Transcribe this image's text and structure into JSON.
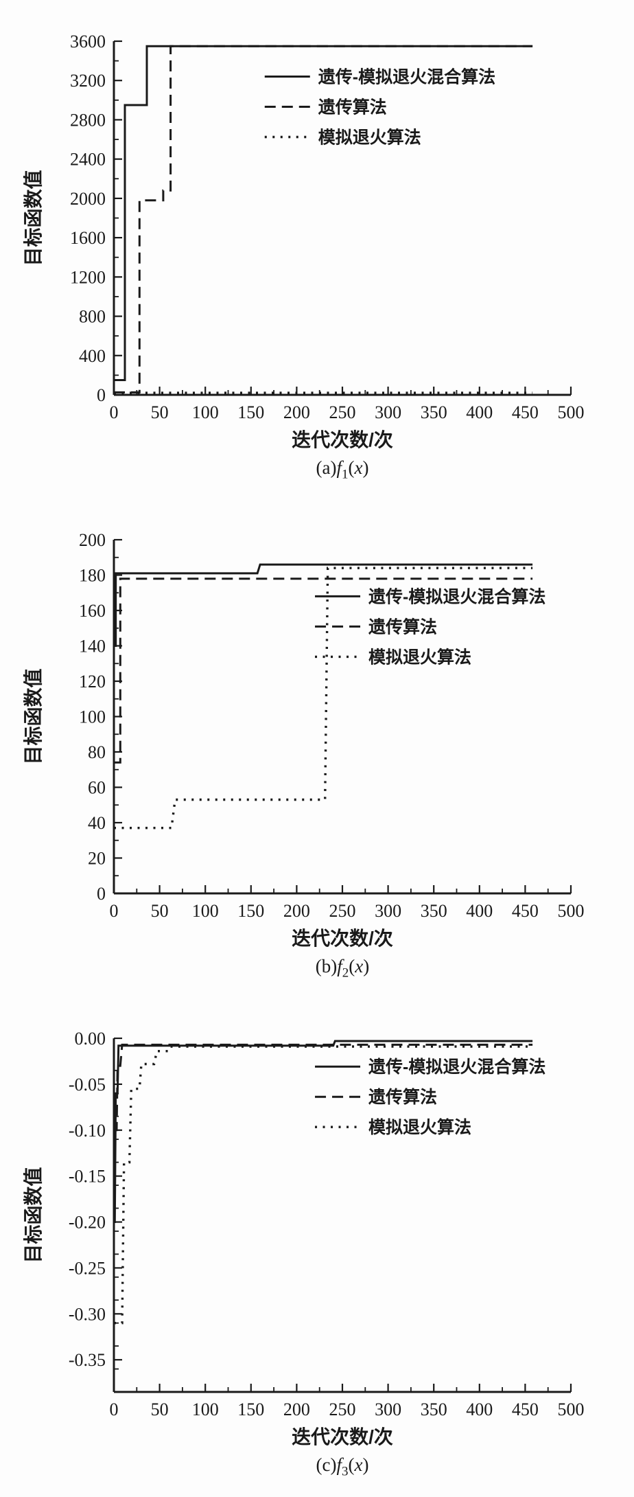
{
  "page": {
    "bg": "#fdfdfd",
    "ink": "#1a1a1a"
  },
  "axis_labels": {
    "x": "迭代次数/次",
    "y": "目标函数值"
  },
  "legend_labels": [
    "遗传-模拟退火混合算法",
    "遗传算法",
    "模拟退火算法"
  ],
  "chart_data": [
    {
      "type": "line",
      "caption": {
        "index": "(a)",
        "fname": "f",
        "sub": "1",
        "open": "(",
        "var": "x",
        "close": ")"
      },
      "xlabel": "迭代次数/次",
      "ylabel": "目标函数值",
      "xlim": [
        0,
        500
      ],
      "ylim": [
        0,
        3600
      ],
      "xticks": [
        0,
        50,
        100,
        150,
        200,
        250,
        300,
        350,
        400,
        450,
        500
      ],
      "yticks": [
        0,
        400,
        800,
        1200,
        1600,
        2000,
        2400,
        2800,
        3200,
        3600
      ],
      "xminor": 25,
      "yminor": 200,
      "ydecimals": 0,
      "grid": false,
      "legend_pos": {
        "fx": 0.33,
        "fy": 0.1
      },
      "series": [
        {
          "name": "遗传-模拟退火混合算法",
          "style": "solid",
          "points": [
            [
              0,
              150
            ],
            [
              12,
              150
            ],
            [
              12,
              2950
            ],
            [
              36,
              2950
            ],
            [
              36,
              3550
            ],
            [
              458,
              3550
            ]
          ]
        },
        {
          "name": "遗传算法",
          "style": "dashed",
          "points": [
            [
              0,
              25
            ],
            [
              28,
              25
            ],
            [
              28,
              1980
            ],
            [
              54,
              1980
            ],
            [
              54,
              2080
            ],
            [
              62,
              2080
            ],
            [
              62,
              3550
            ],
            [
              458,
              3550
            ]
          ]
        },
        {
          "name": "模拟退火算法",
          "style": "dotted",
          "points": [
            [
              0,
              20
            ],
            [
              458,
              20
            ]
          ]
        }
      ]
    },
    {
      "type": "line",
      "caption": {
        "index": "(b)",
        "fname": "f",
        "sub": "2",
        "open": "(",
        "var": "x",
        "close": ")"
      },
      "xlabel": "迭代次数/次",
      "ylabel": "目标函数值",
      "xlim": [
        0,
        500
      ],
      "ylim": [
        0,
        200
      ],
      "xticks": [
        0,
        50,
        100,
        150,
        200,
        250,
        300,
        350,
        400,
        450,
        500
      ],
      "yticks": [
        0,
        20,
        40,
        60,
        80,
        100,
        120,
        140,
        160,
        180,
        200
      ],
      "xminor": 25,
      "yminor": 10,
      "ydecimals": 0,
      "grid": false,
      "legend_pos": {
        "fx": 0.44,
        "fy": 0.16
      },
      "series": [
        {
          "name": "遗传-模拟退火混合算法",
          "style": "solid",
          "points": [
            [
              0,
              140
            ],
            [
              2,
              140
            ],
            [
              2,
              181
            ],
            [
              157,
              181
            ],
            [
              160,
              186
            ],
            [
              458,
              186
            ]
          ]
        },
        {
          "name": "遗传算法",
          "style": "dashed",
          "points": [
            [
              0,
              74
            ],
            [
              7,
              74
            ],
            [
              7,
              178
            ],
            [
              458,
              178
            ]
          ]
        },
        {
          "name": "模拟退火算法",
          "style": "dotted",
          "points": [
            [
              0,
              37
            ],
            [
              63,
              37
            ],
            [
              67,
              53
            ],
            [
              231,
              53
            ],
            [
              234,
              184
            ],
            [
              458,
              184
            ]
          ]
        }
      ]
    },
    {
      "type": "line",
      "caption": {
        "index": "(c)",
        "fname": "f",
        "sub": "3",
        "open": "(",
        "var": "x",
        "close": ")"
      },
      "xlabel": "迭代次数/次",
      "ylabel": "目标函数值",
      "xlim": [
        0,
        500
      ],
      "ylim": [
        -0.385,
        0
      ],
      "xticks": [
        0,
        50,
        100,
        150,
        200,
        250,
        300,
        350,
        400,
        450,
        500
      ],
      "yticks": [
        0,
        -0.05,
        -0.1,
        -0.15,
        -0.2,
        -0.25,
        -0.3,
        -0.35
      ],
      "xminor": 25,
      "yminor": 0.025,
      "ydecimals": 2,
      "grid": false,
      "legend_pos": {
        "fx": 0.44,
        "fy": 0.08
      },
      "series": [
        {
          "name": "遗传-模拟退火混合算法",
          "style": "solid",
          "points": [
            [
              0,
              -0.2
            ],
            [
              1,
              -0.2
            ],
            [
              2,
              -0.06
            ],
            [
              4,
              -0.06
            ],
            [
              5,
              -0.008
            ],
            [
              240,
              -0.008
            ],
            [
              242,
              -0.003
            ],
            [
              458,
              -0.003
            ]
          ]
        },
        {
          "name": "遗传算法",
          "style": "dashed",
          "points": [
            [
              0,
              -0.1
            ],
            [
              3,
              -0.1
            ],
            [
              4,
              -0.03
            ],
            [
              7,
              -0.03
            ],
            [
              9,
              -0.007
            ],
            [
              458,
              -0.007
            ]
          ]
        },
        {
          "name": "模拟退火算法",
          "style": "dotted",
          "points": [
            [
              0,
              -0.31
            ],
            [
              9,
              -0.31
            ],
            [
              11,
              -0.135
            ],
            [
              17,
              -0.135
            ],
            [
              19,
              -0.055
            ],
            [
              28,
              -0.055
            ],
            [
              30,
              -0.028
            ],
            [
              44,
              -0.028
            ],
            [
              47,
              -0.014
            ],
            [
              60,
              -0.014
            ],
            [
              62,
              -0.009
            ],
            [
              458,
              -0.009
            ]
          ]
        }
      ]
    }
  ]
}
